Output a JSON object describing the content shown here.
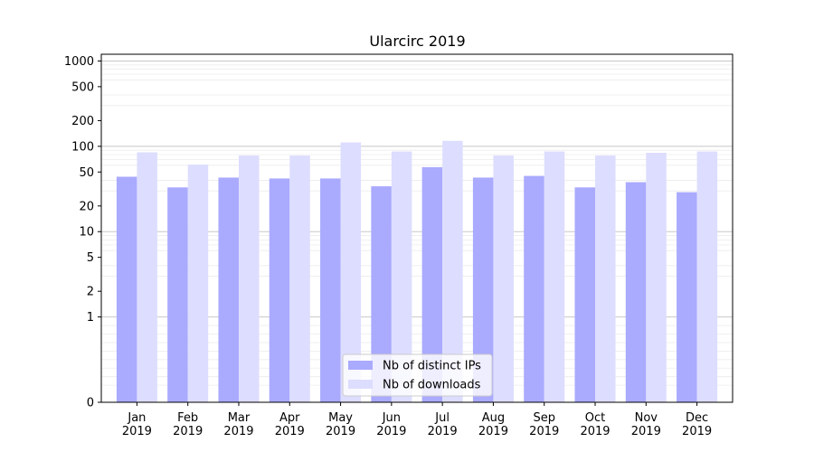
{
  "colors": {
    "ips": "#aaaaff",
    "downloads": "#ddddff",
    "major_grid": "#c8c8c8",
    "minor_grid": "#ececec",
    "axis": "#000000"
  },
  "chart_data": {
    "type": "bar",
    "title": "Ularcirc 2019",
    "xlabel": "",
    "ylabel": "",
    "y_scale": "symlog",
    "ylim": [
      0,
      1200
    ],
    "y_ticks": [
      0,
      1,
      2,
      5,
      10,
      20,
      50,
      100,
      200,
      500,
      1000
    ],
    "y_tick_labels": [
      "0",
      "1",
      "2",
      "5",
      "10",
      "20",
      "50",
      "100",
      "200",
      "500",
      "1000"
    ],
    "grid": true,
    "legend_position": "bottom-center",
    "categories": [
      [
        "Jan",
        "2019"
      ],
      [
        "Feb",
        "2019"
      ],
      [
        "Mar",
        "2019"
      ],
      [
        "Apr",
        "2019"
      ],
      [
        "May",
        "2019"
      ],
      [
        "Jun",
        "2019"
      ],
      [
        "Jul",
        "2019"
      ],
      [
        "Aug",
        "2019"
      ],
      [
        "Sep",
        "2019"
      ],
      [
        "Oct",
        "2019"
      ],
      [
        "Nov",
        "2019"
      ],
      [
        "Dec",
        "2019"
      ]
    ],
    "series": [
      {
        "name": "Nb of distinct IPs",
        "color_key": "ips",
        "values": [
          44,
          33,
          43,
          42,
          42,
          34,
          57,
          43,
          45,
          33,
          38,
          29
        ]
      },
      {
        "name": "Nb of downloads",
        "color_key": "downloads",
        "values": [
          85,
          61,
          78,
          78,
          111,
          87,
          116,
          78,
          87,
          78,
          84,
          87
        ]
      }
    ]
  }
}
